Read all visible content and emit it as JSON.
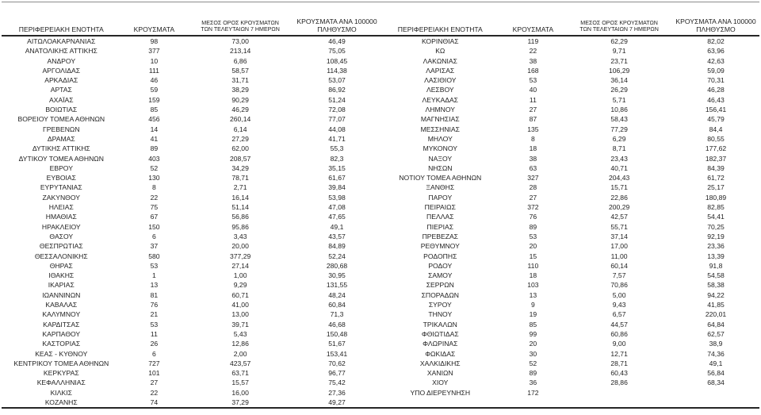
{
  "columns": {
    "region": "ΠΕΡΙΦΕΡΕΙΑΚΗ ΕΝΟΤΗΤΑ",
    "cases": "ΚΡΟΥΣΜΑΤΑ",
    "avg7_line1": "ΜΕΣΟΣ ΟΡΟΣ ΚΡΟΥΣΜΑΤΩΝ",
    "avg7_line2": "ΤΩΝ ΤΕΛΕΥΤΑΙΩΝ 7 ΗΜΕΡΩΝ",
    "per100k_line1": "ΚΡΟΥΣΜΑΤΑ ΑΝΑ 100000",
    "per100k_line2": "ΠΛΗΘΥΣΜΟ"
  },
  "left_table": {
    "rows": [
      [
        "ΑΙΤΩΛΟΑΚΑΡΝΑΝΙΑΣ",
        "98",
        "73,00",
        "46,49"
      ],
      [
        "ΑΝΑΤΟΛΙΚΗΣ ΑΤΤΙΚΗΣ",
        "377",
        "213,14",
        "75,05"
      ],
      [
        "ΑΝΔΡΟΥ",
        "10",
        "6,86",
        "108,45"
      ],
      [
        "ΑΡΓΟΛΙΔΑΣ",
        "111",
        "58,57",
        "114,38"
      ],
      [
        "ΑΡΚΑΔΙΑΣ",
        "46",
        "31,71",
        "53,07"
      ],
      [
        "ΑΡΤΑΣ",
        "59",
        "38,29",
        "86,92"
      ],
      [
        "ΑΧΑΪΑΣ",
        "159",
        "90,29",
        "51,24"
      ],
      [
        "ΒΟΙΩΤΙΑΣ",
        "85",
        "46,29",
        "72,08"
      ],
      [
        "ΒΟΡΕΙΟΥ ΤΟΜΕΑ ΑΘΗΝΩΝ",
        "456",
        "260,14",
        "77,07"
      ],
      [
        "ΓΡΕΒΕΝΩΝ",
        "14",
        "6,14",
        "44,08"
      ],
      [
        "ΔΡΑΜΑΣ",
        "41",
        "27,29",
        "41,71"
      ],
      [
        "ΔΥΤΙΚΗΣ ΑΤΤΙΚΗΣ",
        "89",
        "62,00",
        "55,3"
      ],
      [
        "ΔΥΤΙΚΟΥ ΤΟΜΕΑ ΑΘΗΝΩΝ",
        "403",
        "208,57",
        "82,3"
      ],
      [
        "ΕΒΡΟΥ",
        "52",
        "34,29",
        "35,15"
      ],
      [
        "ΕΥΒΟΙΑΣ",
        "130",
        "78,71",
        "61,67"
      ],
      [
        "ΕΥΡΥΤΑΝΙΑΣ",
        "8",
        "2,71",
        "39,84"
      ],
      [
        "ΖΑΚΥΝΘΟΥ",
        "22",
        "16,14",
        "53,98"
      ],
      [
        "ΗΛΕΙΑΣ",
        "75",
        "51,14",
        "47,08"
      ],
      [
        "ΗΜΑΘΙΑΣ",
        "67",
        "56,86",
        "47,65"
      ],
      [
        "ΗΡΑΚΛΕΙΟΥ",
        "150",
        "95,86",
        "49,1"
      ],
      [
        "ΘΑΣΟΥ",
        "6",
        "3,43",
        "43,57"
      ],
      [
        "ΘΕΣΠΡΩΤΙΑΣ",
        "37",
        "20,00",
        "84,89"
      ],
      [
        "ΘΕΣΣΑΛΟΝΙΚΗΣ",
        "580",
        "377,29",
        "52,24"
      ],
      [
        "ΘΗΡΑΣ",
        "53",
        "27,14",
        "280,68"
      ],
      [
        "ΙΘΑΚΗΣ",
        "1",
        "1,00",
        "30,95"
      ],
      [
        "ΙΚΑΡΙΑΣ",
        "13",
        "9,29",
        "131,55"
      ],
      [
        "ΙΩΑΝΝΙΝΩΝ",
        "81",
        "60,71",
        "48,24"
      ],
      [
        "ΚΑΒΑΛΑΣ",
        "76",
        "41,00",
        "60,84"
      ],
      [
        "ΚΑΛΥΜΝΟΥ",
        "21",
        "13,00",
        "71,3"
      ],
      [
        "ΚΑΡΔΙΤΣΑΣ",
        "53",
        "39,71",
        "46,68"
      ],
      [
        "ΚΑΡΠΑΘΟΥ",
        "11",
        "5,43",
        "150,48"
      ],
      [
        "ΚΑΣΤΟΡΙΑΣ",
        "26",
        "12,86",
        "51,67"
      ],
      [
        "ΚΕΑΣ - ΚΥΘΝΟΥ",
        "6",
        "2,00",
        "153,41"
      ],
      [
        "ΚΕΝΤΡΙΚΟΥ ΤΟΜΕΑ ΑΘΗΝΩΝ",
        "727",
        "423,57",
        "70,62"
      ],
      [
        "ΚΕΡΚΥΡΑΣ",
        "101",
        "63,71",
        "96,77"
      ],
      [
        "ΚΕΦΑΛΛΗΝΙΑΣ",
        "27",
        "15,57",
        "75,42"
      ],
      [
        "ΚΙΛΚΙΣ",
        "22",
        "16,00",
        "27,36"
      ],
      [
        "ΚΟΖΑΝΗΣ",
        "74",
        "37,29",
        "49,27"
      ]
    ]
  },
  "right_table": {
    "rows": [
      [
        "ΚΟΡΙΝΘΙΑΣ",
        "119",
        "62,29",
        "82,02"
      ],
      [
        "ΚΩ",
        "22",
        "9,71",
        "63,96"
      ],
      [
        "ΛΑΚΩΝΙΑΣ",
        "38",
        "23,71",
        "42,63"
      ],
      [
        "ΛΑΡΙΣΑΣ",
        "168",
        "106,29",
        "59,09"
      ],
      [
        "ΛΑΣΙΘΙΟΥ",
        "53",
        "36,14",
        "70,31"
      ],
      [
        "ΛΕΣΒΟΥ",
        "40",
        "26,29",
        "46,28"
      ],
      [
        "ΛΕΥΚΑΔΑΣ",
        "11",
        "5,71",
        "46,43"
      ],
      [
        "ΛΗΜΝΟΥ",
        "27",
        "10,86",
        "156,41"
      ],
      [
        "ΜΑΓΝΗΣΙΑΣ",
        "87",
        "58,43",
        "45,79"
      ],
      [
        "ΜΕΣΣΗΝΙΑΣ",
        "135",
        "77,29",
        "84,4"
      ],
      [
        "ΜΗΛΟΥ",
        "8",
        "6,29",
        "80,55"
      ],
      [
        "ΜΥΚΟΝΟΥ",
        "18",
        "8,71",
        "177,62"
      ],
      [
        "ΝΑΞΟΥ",
        "38",
        "23,43",
        "182,37"
      ],
      [
        "ΝΗΣΩΝ",
        "63",
        "40,71",
        "84,39"
      ],
      [
        "ΝΟΤΙΟΥ ΤΟΜΕΑ ΑΘΗΝΩΝ",
        "327",
        "204,43",
        "61,72"
      ],
      [
        "ΞΑΝΘΗΣ",
        "28",
        "15,71",
        "25,17"
      ],
      [
        "ΠΑΡΟΥ",
        "27",
        "22,86",
        "180,89"
      ],
      [
        "ΠΕΙΡΑΙΩΣ",
        "372",
        "200,29",
        "82,85"
      ],
      [
        "ΠΕΛΛΑΣ",
        "76",
        "42,57",
        "54,41"
      ],
      [
        "ΠΙΕΡΙΑΣ",
        "89",
        "55,71",
        "70,25"
      ],
      [
        "ΠΡΕΒΕΖΑΣ",
        "53",
        "37,14",
        "92,19"
      ],
      [
        "ΡΕΘΥΜΝΟΥ",
        "20",
        "17,00",
        "23,36"
      ],
      [
        "ΡΟΔΟΠΗΣ",
        "15",
        "11,00",
        "13,39"
      ],
      [
        "ΡΟΔΟΥ",
        "110",
        "60,14",
        "91,8"
      ],
      [
        "ΣΑΜΟΥ",
        "18",
        "7,57",
        "54,58"
      ],
      [
        "ΣΕΡΡΩΝ",
        "103",
        "70,86",
        "58,38"
      ],
      [
        "ΣΠΟΡΑΔΩΝ",
        "13",
        "5,00",
        "94,22"
      ],
      [
        "ΣΥΡΟΥ",
        "9",
        "9,43",
        "41,85"
      ],
      [
        "ΤΗΝΟΥ",
        "19",
        "6,57",
        "220,01"
      ],
      [
        "ΤΡΙΚΑΛΩΝ",
        "85",
        "44,57",
        "64,84"
      ],
      [
        "ΦΘΙΩΤΙΔΑΣ",
        "99",
        "60,86",
        "62,57"
      ],
      [
        "ΦΛΩΡΙΝΑΣ",
        "20",
        "9,00",
        "38,9"
      ],
      [
        "ΦΩΚΙΔΑΣ",
        "30",
        "12,71",
        "74,36"
      ],
      [
        "ΧΑΛΚΙΔΙΚΗΣ",
        "52",
        "28,71",
        "49,1"
      ],
      [
        "ΧΑΝΙΩΝ",
        "89",
        "60,43",
        "56,84"
      ],
      [
        "ΧΙΟΥ",
        "36",
        "28,86",
        "68,34"
      ],
      [
        "ΥΠΟ ΔΙΕΡΕΥΝΗΣΗ",
        "172",
        "",
        ""
      ]
    ]
  },
  "chart_data": {
    "type": "table",
    "title": "",
    "column_headers": [
      "ΠΕΡΙΦΕΡΕΙΑΚΗ ΕΝΟΤΗΤΑ",
      "ΚΡΟΥΣΜΑΤΑ",
      "ΜΕΣΟΣ ΟΡΟΣ ΚΡΟΥΣΜΑΤΩΝ ΤΩΝ ΤΕΛΕΥΤΑΙΩΝ 7 ΗΜΕΡΩΝ",
      "ΚΡΟΥΣΜΑΤΑ ΑΝΑ 100000 ΠΛΗΘΥΣΜΟ"
    ],
    "layout": "two side-by-side tables, continuous alphabetical list of Greek regional units"
  }
}
